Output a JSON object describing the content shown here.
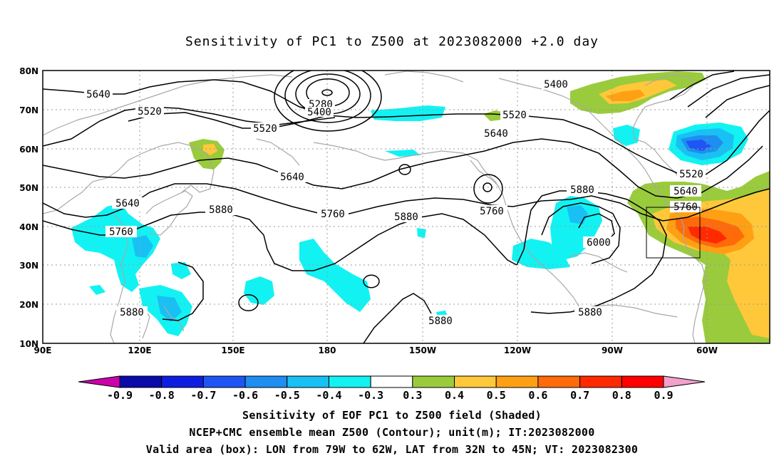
{
  "title": "Sensitivity of PC1 to Z500 at 2023082000 +2.0 day",
  "axes": {
    "x_labels": [
      "90E",
      "120E",
      "150E",
      "180",
      "150W",
      "120W",
      "90W",
      "60W"
    ],
    "y_labels": [
      "80N",
      "70N",
      "60N",
      "50N",
      "40N",
      "30N",
      "20N",
      "10N"
    ]
  },
  "contour_labels": [
    "5640",
    "5520",
    "5280",
    "5400",
    "5520",
    "5400",
    "5520",
    "5640",
    "5640",
    "5520",
    "5640",
    "5760",
    "5880",
    "5760",
    "5880",
    "5760",
    "5880",
    "6000",
    "5760",
    "5880",
    "5880",
    "5880",
    "5640"
  ],
  "colorbar": {
    "ticks": [
      "-0.9",
      "-0.8",
      "-0.7",
      "-0.6",
      "-0.5",
      "-0.4",
      "-0.3",
      "0.3",
      "0.4",
      "0.5",
      "0.6",
      "0.7",
      "0.8",
      "0.9"
    ],
    "colors": [
      "#0a0aa8",
      "#0e1ee0",
      "#1f55f5",
      "#1e8ef0",
      "#19c0f4",
      "#12f2f2",
      "#ffffff",
      "#9acb3c",
      "#ffc83a",
      "#ffa014",
      "#ff6a0a",
      "#ff2a00",
      "#ff0000"
    ],
    "end_low": "#cc00aa",
    "end_high": "#f2a0cc"
  },
  "box": {
    "label": "Valid area (box)"
  },
  "footer": {
    "line1": "Sensitivity of EOF PC1 to Z500 field (Shaded)",
    "line2": "NCEP+CMC ensemble mean Z500 (Contour); unit(m); IT:2023082000",
    "line3": "Valid area (box): LON from 79W to 62W, LAT from 32N to 45N; VT: 2023082300"
  }
}
